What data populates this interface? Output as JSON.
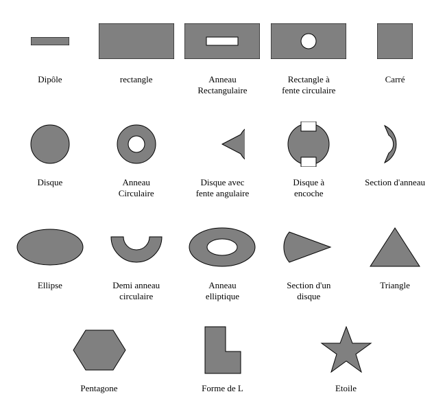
{
  "shapeColor": "#808080",
  "borderColor": "#000000",
  "textColor": "#000000",
  "fontSize": 13,
  "background": "#ffffff",
  "rows": [
    {
      "cells": [
        {
          "id": "dipole",
          "label": "Dipôle"
        },
        {
          "id": "rectangle",
          "label": "rectangle"
        },
        {
          "id": "rect-ring",
          "label": "Anneau\nRectangulaire"
        },
        {
          "id": "rect-circ-slot",
          "label": "Rectangle à\nfente circulaire"
        },
        {
          "id": "square",
          "label": "Carré"
        }
      ]
    },
    {
      "cells": [
        {
          "id": "disc",
          "label": "Disque"
        },
        {
          "id": "circ-ring",
          "label": "Anneau\nCirculaire"
        },
        {
          "id": "disc-ang-slot",
          "label": "Disque avec\nfente angulaire"
        },
        {
          "id": "disc-notch",
          "label": "Disque à\nencoche"
        },
        {
          "id": "ring-section",
          "label": "Section d'anneau"
        }
      ]
    },
    {
      "cells": [
        {
          "id": "ellipse",
          "label": "Ellipse"
        },
        {
          "id": "half-ring",
          "label": "Demi anneau\ncirculaire"
        },
        {
          "id": "ellip-ring",
          "label": "Anneau\nelliptique"
        },
        {
          "id": "disc-section",
          "label": "Section d'un\ndisque"
        },
        {
          "id": "triangle",
          "label": "Triangle"
        }
      ]
    },
    {
      "cells": [
        {
          "id": "pentagon",
          "label": "Pentagone"
        },
        {
          "id": "l-shape",
          "label": "Forme de L"
        },
        {
          "id": "star",
          "label": "Etoile"
        }
      ]
    }
  ]
}
